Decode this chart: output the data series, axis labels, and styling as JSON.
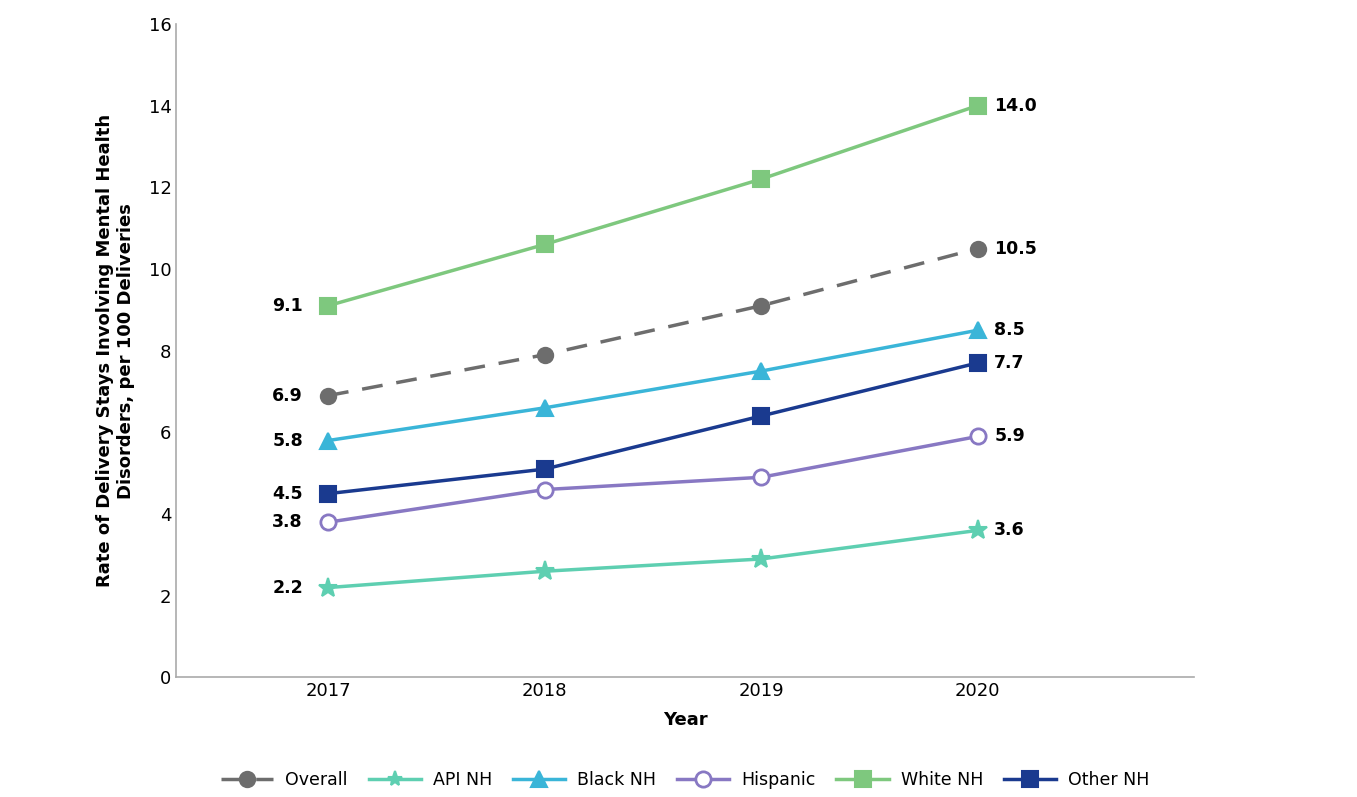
{
  "years": [
    2017,
    2018,
    2019,
    2020
  ],
  "series": [
    {
      "label": "Overall",
      "values": [
        6.9,
        7.9,
        9.1,
        10.5
      ],
      "color": "#6d6d6d",
      "linestyle": "--",
      "marker": "o",
      "markersize": 11,
      "markerfacecolor": "#6d6d6d",
      "markeredgecolor": "#6d6d6d",
      "markeredgewidth": 1.5,
      "linewidth": 2.5,
      "zorder": 5,
      "dashes": [
        6,
        4
      ]
    },
    {
      "label": "API NH",
      "values": [
        2.2,
        2.6,
        2.9,
        3.6
      ],
      "color": "#5ecfb1",
      "linestyle": "-",
      "marker": "*",
      "markersize": 14,
      "markerfacecolor": "#5ecfb1",
      "markeredgecolor": "#5ecfb1",
      "markeredgewidth": 1.5,
      "linewidth": 2.5,
      "zorder": 4,
      "dashes": null
    },
    {
      "label": "Black NH",
      "values": [
        5.8,
        6.6,
        7.5,
        8.5
      ],
      "color": "#3ab5d8",
      "linestyle": "-",
      "marker": "^",
      "markersize": 11,
      "markerfacecolor": "#3ab5d8",
      "markeredgecolor": "#3ab5d8",
      "markeredgewidth": 1.5,
      "linewidth": 2.5,
      "zorder": 4,
      "dashes": null
    },
    {
      "label": "Hispanic",
      "values": [
        3.8,
        4.6,
        4.9,
        5.9
      ],
      "color": "#8878c3",
      "linestyle": "-",
      "marker": "o",
      "markersize": 11,
      "markerfacecolor": "white",
      "markeredgecolor": "#8878c3",
      "markeredgewidth": 2.0,
      "linewidth": 2.5,
      "zorder": 4,
      "dashes": null
    },
    {
      "label": "White NH",
      "values": [
        9.1,
        10.6,
        12.2,
        14.0
      ],
      "color": "#7ec87e",
      "linestyle": "-",
      "marker": "s",
      "markersize": 11,
      "markerfacecolor": "#7ec87e",
      "markeredgecolor": "#7ec87e",
      "markeredgewidth": 1.5,
      "linewidth": 2.5,
      "zorder": 4,
      "dashes": null
    },
    {
      "label": "Other NH",
      "values": [
        4.5,
        5.1,
        6.4,
        7.7
      ],
      "color": "#1a3a8f",
      "linestyle": "-",
      "marker": "s",
      "markersize": 11,
      "markerfacecolor": "#1a3a8f",
      "markeredgecolor": "#1a3a8f",
      "markeredgewidth": 1.5,
      "linewidth": 2.5,
      "zorder": 4,
      "dashes": null
    }
  ],
  "ylabel": "Rate of Delivery Stays Involving Mental Health\nDisorders, per 100 Deliveries",
  "xlabel": "Year",
  "ylim": [
    0,
    16
  ],
  "yticks": [
    0,
    2,
    4,
    6,
    8,
    10,
    12,
    14,
    16
  ],
  "background_color": "#ffffff",
  "spine_color": "#aaaaaa",
  "annotation_fontsize": 12.5,
  "axis_label_fontsize": 13,
  "tick_fontsize": 13,
  "legend_fontsize": 12.5
}
